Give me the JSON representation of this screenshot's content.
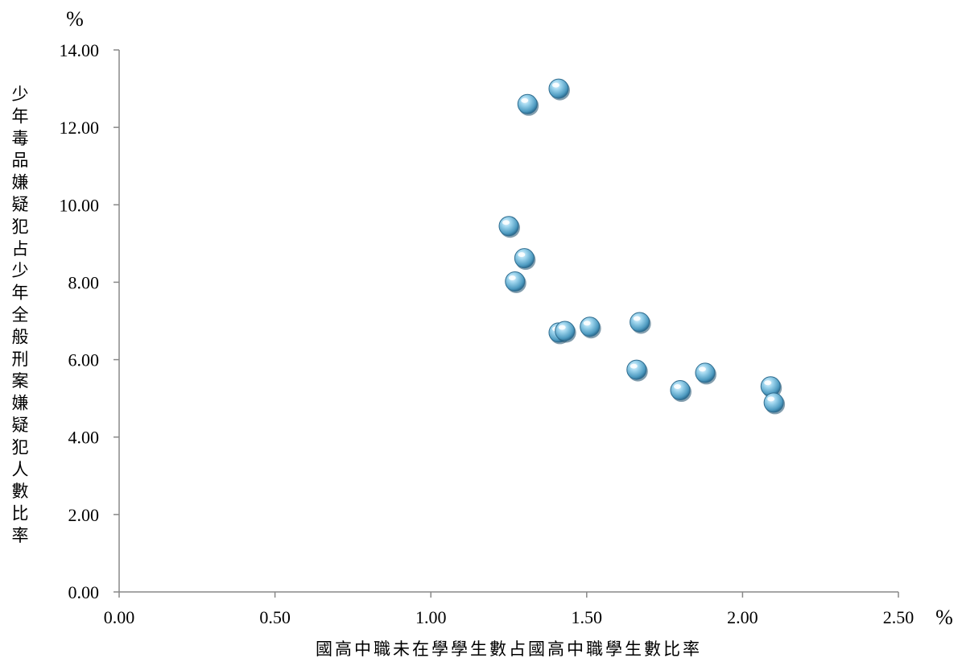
{
  "chart_data": {
    "type": "scatter",
    "xlabel": "國高中職未在學學生數占國高中職學生數比率",
    "ylabel": "少年毒品嫌疑犯占少年全般刑案嫌疑犯人數比率",
    "x_unit": "%",
    "y_unit": "%",
    "xlim": [
      0,
      2.5
    ],
    "ylim": [
      0,
      14
    ],
    "x_ticks": [
      "0.00",
      "0.50",
      "1.00",
      "1.50",
      "2.00",
      "2.50"
    ],
    "y_ticks": [
      "0.00",
      "2.00",
      "4.00",
      "6.00",
      "8.00",
      "10.00",
      "12.00",
      "14.00"
    ],
    "grid": false,
    "marker_color": "#7fc3e0",
    "series": [
      {
        "points": [
          {
            "x": 1.41,
            "y": 13.0
          },
          {
            "x": 1.31,
            "y": 12.6
          },
          {
            "x": 1.25,
            "y": 9.45
          },
          {
            "x": 1.3,
            "y": 8.62
          },
          {
            "x": 1.27,
            "y": 8.02
          },
          {
            "x": 1.41,
            "y": 6.7
          },
          {
            "x": 1.43,
            "y": 6.74
          },
          {
            "x": 1.51,
            "y": 6.85
          },
          {
            "x": 1.67,
            "y": 6.97
          },
          {
            "x": 1.66,
            "y": 5.74
          },
          {
            "x": 1.88,
            "y": 5.66
          },
          {
            "x": 1.8,
            "y": 5.21
          },
          {
            "x": 2.09,
            "y": 5.31
          },
          {
            "x": 2.1,
            "y": 4.89
          }
        ]
      }
    ]
  }
}
